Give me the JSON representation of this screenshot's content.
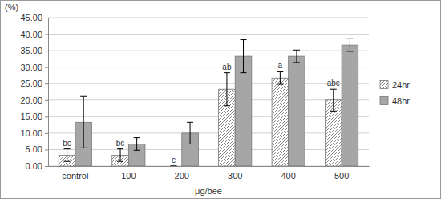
{
  "chart_data": {
    "type": "bar",
    "y_label": "(%)",
    "x_label": "μg/bee",
    "categories": [
      "control",
      "100",
      "200",
      "300",
      "400",
      "500"
    ],
    "series": [
      {
        "name": "24hr",
        "color": "#8c8c8c",
        "values": [
          3.3,
          3.3,
          0,
          23.3,
          26.7,
          20.0
        ],
        "errors": [
          1.9,
          1.9,
          0,
          5.0,
          1.9,
          3.3
        ]
      },
      {
        "name": "48hr",
        "color": "#a6a6a6",
        "values": [
          13.3,
          6.7,
          10.0,
          33.3,
          33.3,
          36.7
        ],
        "errors": [
          7.8,
          1.9,
          3.3,
          5.0,
          1.9,
          1.9
        ]
      }
    ],
    "annotations": [
      "bc",
      "bc",
      "c",
      "ab",
      "a",
      "abc"
    ],
    "ylim": [
      0,
      45
    ],
    "yticks": [
      {
        "value": 0,
        "label": "0.00"
      },
      {
        "value": 5,
        "label": "5.00"
      },
      {
        "value": 10,
        "label": "10.00"
      },
      {
        "value": 15,
        "label": "15.00"
      },
      {
        "value": 20,
        "label": "20.00"
      },
      {
        "value": 25,
        "label": "25.00"
      },
      {
        "value": 30,
        "label": "30.00"
      },
      {
        "value": 35,
        "label": "35.00"
      },
      {
        "value": 40,
        "label": "40.00"
      },
      {
        "value": 45,
        "label": "45.00"
      }
    ],
    "grid": true,
    "legend": "right"
  }
}
